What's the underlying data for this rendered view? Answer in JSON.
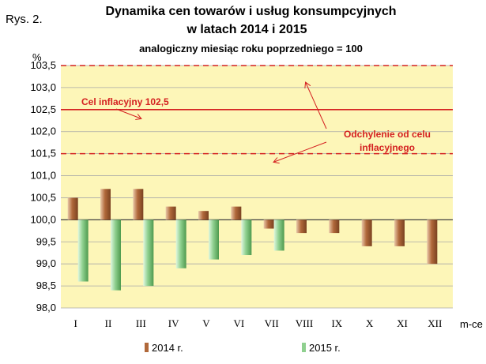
{
  "figure_label": "Rys. 2.",
  "chart_data": {
    "type": "bar",
    "title": "Dynamika cen towarów i usług konsumpcyjnych",
    "title_line2": "w latach 2014 i 2015",
    "subtitle": "analogiczny miesiąc roku poprzedniego = 100",
    "ylabel": "%",
    "xlabel": "m-ce",
    "ylim": [
      98.0,
      103.5
    ],
    "baseline": 100.0,
    "yticks": [
      "98,0",
      "98,5",
      "99,0",
      "99,5",
      "100,0",
      "100,5",
      "101,0",
      "101,5",
      "102,0",
      "102,5",
      "103,0",
      "103,5"
    ],
    "categories": [
      "I",
      "II",
      "III",
      "IV",
      "V",
      "VI",
      "VII",
      "VIII",
      "IX",
      "X",
      "XI",
      "XII"
    ],
    "series": [
      {
        "name": "2014 r.",
        "color": "#b0683a",
        "values": [
          100.5,
          100.7,
          100.7,
          100.3,
          100.2,
          100.3,
          99.8,
          99.7,
          99.7,
          99.4,
          99.4,
          99.0
        ]
      },
      {
        "name": "2015 r.",
        "color": "#8fd08f",
        "values": [
          98.6,
          98.4,
          98.5,
          98.9,
          99.1,
          99.2,
          99.3,
          null,
          null,
          null,
          null,
          null
        ]
      }
    ],
    "reference_lines": [
      {
        "value": 102.5,
        "style": "solid",
        "color": "#d42020"
      },
      {
        "value": 103.5,
        "style": "dashed",
        "color": "#d42020"
      },
      {
        "value": 101.5,
        "style": "dashed",
        "color": "#d42020"
      }
    ],
    "annotations": {
      "target": "Cel inflacyjny 102,5",
      "deviation_line1": "Odchylenie od celu",
      "deviation_line2": "inflacyjnego"
    },
    "plot_background": "#fdf6b8",
    "grid": true,
    "legend_position": "bottom"
  }
}
